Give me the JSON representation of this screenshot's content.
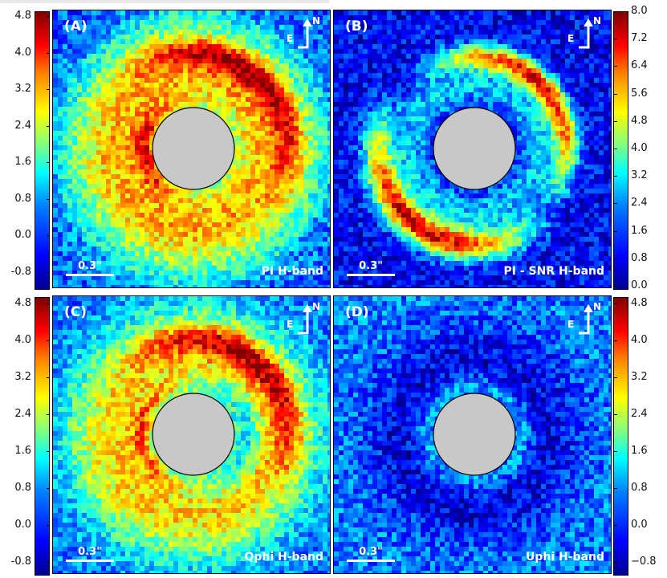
{
  "panels": [
    {
      "label": "(A)",
      "name": "PI H-band",
      "scale": "0.3\""
    },
    {
      "label": "(B)",
      "name": "PI - SNR H-band",
      "scale": "0.3\""
    },
    {
      "label": "(C)",
      "name": "Qphi H-band",
      "scale": "0.3\""
    },
    {
      "label": "(D)",
      "name": "Uphi H-band",
      "scale": "0.3\""
    }
  ],
  "compass": {
    "east": "E",
    "north": "N"
  },
  "colorbars": {
    "top_left": [
      "4.8",
      "4.0",
      "3.2",
      "2.4",
      "1.6",
      "0.8",
      "0.0",
      "-0.8"
    ],
    "top_right": [
      "8.0",
      "7.2",
      "6.4",
      "5.6",
      "4.8",
      "4.0",
      "3.2",
      "2.4",
      "1.6",
      "0.8",
      "0.0"
    ],
    "bottom_left": [
      "4.8",
      "4.0",
      "3.2",
      "2.4",
      "1.6",
      "0.8",
      "0.0",
      "-0.8"
    ],
    "bottom_right": [
      "4.8",
      "4.0",
      "3.2",
      "2.4",
      "1.6",
      "0.8",
      "0.0",
      "−0.8"
    ]
  },
  "colors": {
    "mask": "#c8c8c8",
    "background_field": "#1a3fd6"
  }
}
